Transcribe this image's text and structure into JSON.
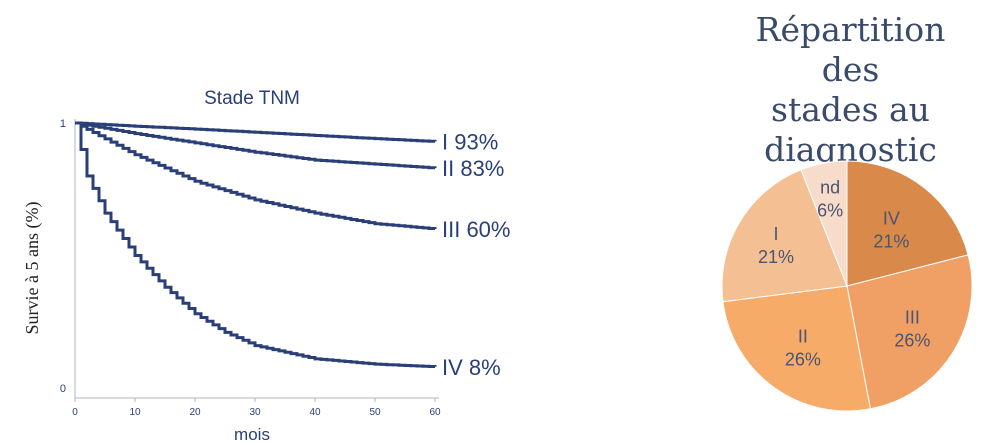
{
  "chart_data": [
    {
      "type": "line",
      "title": "Stade TNM",
      "xlabel": "mois",
      "ylabel": "Survie à 5 ans (%)",
      "xlim": [
        0,
        60
      ],
      "ylim": [
        0,
        1
      ],
      "xticks": [
        "0",
        "10",
        "20",
        "30",
        "40",
        "50",
        "60"
      ],
      "yticks": [
        "0",
        "1"
      ],
      "series": [
        {
          "name": "I 93%",
          "x": [
            0,
            10,
            20,
            30,
            40,
            50,
            60
          ],
          "values": [
            1,
            0.988,
            0.977,
            0.965,
            0.953,
            0.941,
            0.93
          ]
        },
        {
          "name": "II 83%",
          "x": [
            0,
            10,
            20,
            30,
            40,
            50,
            60
          ],
          "values": [
            1,
            0.96,
            0.925,
            0.89,
            0.86,
            0.845,
            0.83
          ]
        },
        {
          "name": "III 60%",
          "x": [
            0,
            10,
            20,
            30,
            40,
            50,
            60
          ],
          "values": [
            1,
            0.88,
            0.78,
            0.71,
            0.66,
            0.62,
            0.6
          ]
        },
        {
          "name": "IV 8%",
          "x": [
            0,
            2,
            5,
            10,
            15,
            20,
            25,
            30,
            40,
            50,
            60
          ],
          "values": [
            1,
            0.8,
            0.66,
            0.5,
            0.38,
            0.28,
            0.21,
            0.16,
            0.11,
            0.09,
            0.08
          ]
        }
      ],
      "color": "#2a3f78",
      "grid": false
    },
    {
      "type": "pie",
      "title": "Répartition des stades au diagnostic",
      "title_lines": [
        "Répartition des",
        "stades au",
        "diagnostic"
      ],
      "slices": [
        {
          "label": "IV",
          "pct": "21%",
          "value": 21,
          "color": "#d98a4a"
        },
        {
          "label": "III",
          "pct": "26%",
          "value": 26,
          "color": "#f1a065"
        },
        {
          "label": "II",
          "pct": "26%",
          "value": 26,
          "color": "#f6ab68"
        },
        {
          "label": "I",
          "pct": "21%",
          "value": 21,
          "color": "#f4bf92"
        },
        {
          "label": "nd",
          "pct": "6%",
          "value": 6,
          "color": "#f8dccb"
        }
      ],
      "text_color": "#4a5570"
    }
  ]
}
